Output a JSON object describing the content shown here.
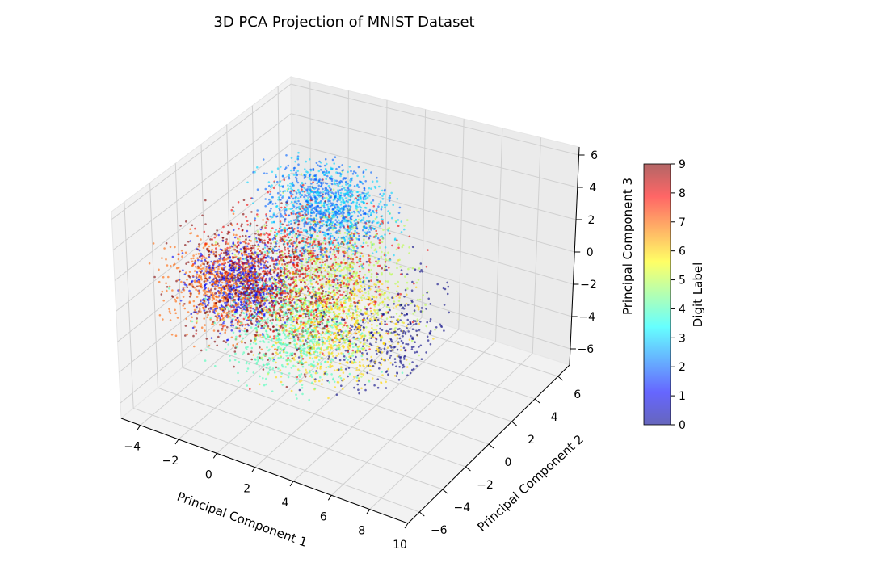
{
  "chart_data": {
    "type": "scatter",
    "projection": "3d",
    "title": "3D PCA Projection of MNIST Dataset",
    "xlabel": "Principal Component 1",
    "ylabel": "Principal Component 2",
    "zlabel": "Principal Component 3",
    "xlim": [
      -5,
      10
    ],
    "ylim": [
      -7,
      7
    ],
    "zlim": [
      -7,
      6.5
    ],
    "xticks": [
      "−4",
      "−2",
      "0",
      "2",
      "4",
      "6",
      "8",
      "10"
    ],
    "yticks": [
      "−6",
      "−4",
      "−2",
      "0",
      "2",
      "4",
      "6"
    ],
    "zticks": [
      "−6",
      "−4",
      "−2",
      "0",
      "2",
      "4",
      "6"
    ],
    "grid": true,
    "colormap": "jet",
    "point_alpha": 0.6,
    "colorbar": {
      "label": "Digit Label",
      "ticks": [
        "0",
        "1",
        "2",
        "3",
        "4",
        "5",
        "6",
        "7",
        "8",
        "9"
      ],
      "range": [
        0,
        9
      ]
    },
    "clusters": [
      {
        "digit": 0,
        "center_pc1": 6.0,
        "center_pc2": -1.0,
        "center_pc3": -1.5,
        "spread": 2.0
      },
      {
        "digit": 1,
        "center_pc1": -3.0,
        "center_pc2": 0.0,
        "center_pc3": -2.0,
        "spread": 1.0
      },
      {
        "digit": 2,
        "center_pc1": 1.0,
        "center_pc2": 1.0,
        "center_pc3": 4.5,
        "spread": 1.3
      },
      {
        "digit": 3,
        "center_pc1": 1.0,
        "center_pc2": 1.5,
        "center_pc3": 4.0,
        "spread": 1.4
      },
      {
        "digit": 4,
        "center_pc1": 1.0,
        "center_pc2": -2.0,
        "center_pc3": -2.0,
        "spread": 1.5
      },
      {
        "digit": 5,
        "center_pc1": 1.5,
        "center_pc2": 0.5,
        "center_pc3": 0.0,
        "spread": 1.8
      },
      {
        "digit": 6,
        "center_pc1": 2.5,
        "center_pc2": -1.0,
        "center_pc3": -1.5,
        "spread": 1.6
      },
      {
        "digit": 7,
        "center_pc1": -3.2,
        "center_pc2": -1.0,
        "center_pc3": -1.5,
        "spread": 1.2
      },
      {
        "digit": 8,
        "center_pc1": 0.5,
        "center_pc2": 0.0,
        "center_pc3": 0.5,
        "spread": 1.9
      },
      {
        "digit": 9,
        "center_pc1": -1.0,
        "center_pc2": -1.0,
        "center_pc3": -0.5,
        "spread": 1.8
      }
    ]
  }
}
